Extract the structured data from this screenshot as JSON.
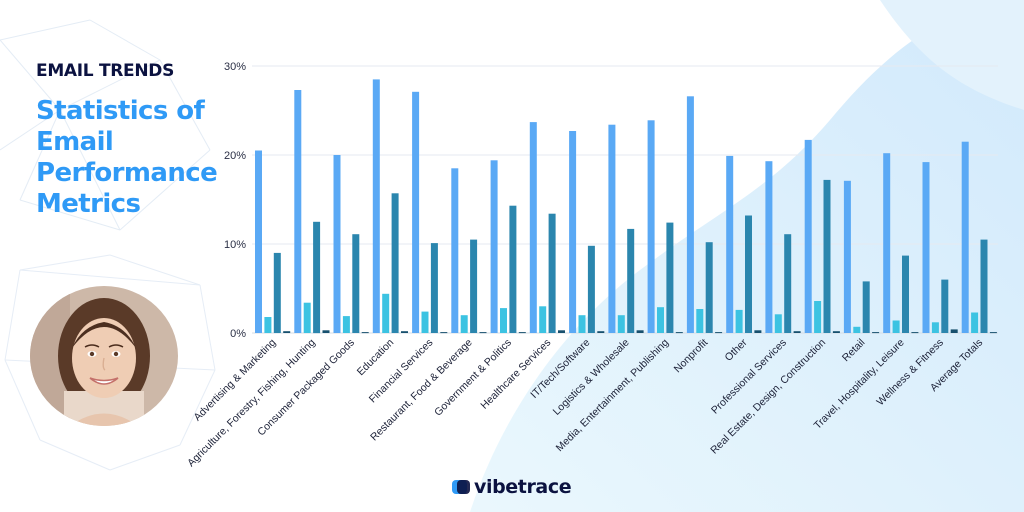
{
  "header": {
    "kicker": "EMAIL TRENDS",
    "headline_lines": [
      "Statistics of",
      "Email",
      "Performance",
      "Metrics"
    ]
  },
  "brand": {
    "name": "vibetrace",
    "primary_color": "#2f9af6",
    "dark_color": "#0b1240"
  },
  "chart_data": {
    "type": "bar",
    "title": "",
    "xlabel": "",
    "ylabel": "",
    "ylim": [
      0,
      30
    ],
    "yticks": [
      0,
      10,
      20,
      30
    ],
    "ytick_labels": [
      "0%",
      "10%",
      "20%",
      "30%"
    ],
    "grid": true,
    "legend": "none",
    "categories": [
      "Advertising & Marketing",
      "Agriculture, Forestry, Fishing, Hunting",
      "Consumer Packaged Goods",
      "Education",
      "Financial Services",
      "Restaurant, Food & Beverage",
      "Government & Politics",
      "Healthcare Services",
      "IT/Tech/Software",
      "Logistics & Wholesale",
      "Media, Entertainment, Publishing",
      "Nonprofit",
      "Other",
      "Professional Services",
      "Real Estate, Design, Construction",
      "Retail",
      "Travel, Hospitality, Leisure",
      "Wellness & Fitness",
      "Average Totals"
    ],
    "series": [
      {
        "color": "#5aa9f5",
        "values": [
          20.5,
          27.3,
          20.0,
          28.5,
          27.1,
          18.5,
          19.4,
          23.7,
          22.7,
          23.4,
          23.9,
          26.6,
          19.9,
          19.3,
          21.7,
          17.1,
          20.2,
          19.2,
          21.5
        ]
      },
      {
        "color": "#3cc3e2",
        "values": [
          1.8,
          3.4,
          1.9,
          4.4,
          2.4,
          2.0,
          2.8,
          3.0,
          2.0,
          2.0,
          2.9,
          2.7,
          2.6,
          2.1,
          3.6,
          0.7,
          1.4,
          1.2,
          2.3
        ]
      },
      {
        "color": "#2b86ae",
        "values": [
          9.0,
          12.5,
          11.1,
          15.7,
          10.1,
          10.5,
          14.3,
          13.4,
          9.8,
          11.7,
          12.4,
          10.2,
          13.2,
          11.1,
          17.2,
          5.8,
          8.7,
          6.0,
          10.5
        ]
      },
      {
        "color": "#17506e",
        "values": [
          0.2,
          0.3,
          0.1,
          0.2,
          0.1,
          0.1,
          0.1,
          0.3,
          0.2,
          0.3,
          0.1,
          0.1,
          0.3,
          0.2,
          0.2,
          0.1,
          0.1,
          0.4,
          0.1
        ]
      }
    ]
  }
}
